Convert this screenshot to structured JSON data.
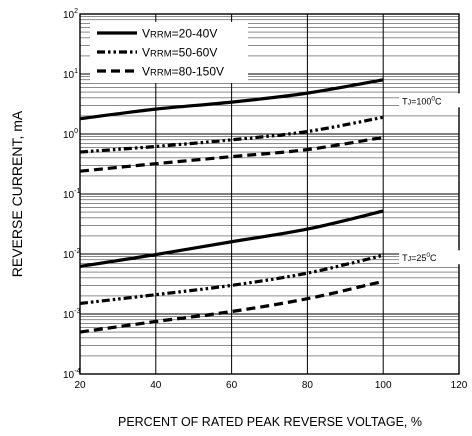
{
  "chart_data": {
    "type": "line",
    "title": "",
    "xlabel": "PERCENT OF RATED PEAK REVERSE VOLTAGE, %",
    "ylabel": "REVERSE CURRENT, mA",
    "xlim": [
      20,
      120
    ],
    "ylim": [
      0.0001,
      100
    ],
    "y_scale": "log",
    "grid": true,
    "legend": "top-left",
    "x_ticks": [
      "20",
      "40",
      "60",
      "80",
      "100",
      "120"
    ],
    "y_ticks": [
      {
        "base": "10",
        "exp": "-4"
      },
      {
        "base": "10",
        "exp": "-3"
      },
      {
        "base": "10",
        "exp": "-2"
      },
      {
        "base": "10",
        "exp": "-1"
      },
      {
        "base": "10",
        "exp": "0"
      },
      {
        "base": "10",
        "exp": "1"
      },
      {
        "base": "10",
        "exp": "2"
      }
    ],
    "legend_entries": [
      {
        "main": "V",
        "sub": "RRM",
        "rest": "=20-40V",
        "style": "solid"
      },
      {
        "main": "V",
        "sub": "RRM",
        "rest": "=50-60V",
        "style": "dashdot"
      },
      {
        "main": "V",
        "sub": "RRM",
        "rest": "=80-150V",
        "style": "dash"
      }
    ],
    "annotations": [
      {
        "main": "T",
        "sub": "J",
        "rest": "=100",
        "sup": "0",
        "tail": "C",
        "at_x": 105,
        "at_y": 3.5
      },
      {
        "main": "T",
        "sub": "J",
        "rest": "=25",
        "sup": "0",
        "tail": "C",
        "at_x": 105,
        "at_y": 0.0085
      }
    ],
    "series": [
      {
        "style": "solid",
        "x": [
          20,
          40,
          60,
          80,
          100
        ],
        "y": [
          1.8,
          2.6,
          3.4,
          4.8,
          8.0
        ]
      },
      {
        "style": "dashdot",
        "x": [
          20,
          40,
          60,
          80,
          100
        ],
        "y": [
          0.5,
          0.62,
          0.8,
          1.1,
          1.9
        ]
      },
      {
        "style": "dash",
        "x": [
          20,
          40,
          60,
          80,
          100
        ],
        "y": [
          0.24,
          0.32,
          0.42,
          0.55,
          0.88
        ]
      },
      {
        "style": "solid",
        "x": [
          20,
          40,
          60,
          80,
          100
        ],
        "y": [
          0.0062,
          0.0098,
          0.016,
          0.026,
          0.052
        ]
      },
      {
        "style": "dashdot",
        "x": [
          20,
          40,
          60,
          80,
          100
        ],
        "y": [
          0.0015,
          0.0021,
          0.003,
          0.0048,
          0.0095
        ]
      },
      {
        "style": "dash",
        "x": [
          20,
          40,
          60,
          80,
          100
        ],
        "y": [
          0.0005,
          0.00075,
          0.0011,
          0.0018,
          0.0035
        ]
      }
    ]
  }
}
